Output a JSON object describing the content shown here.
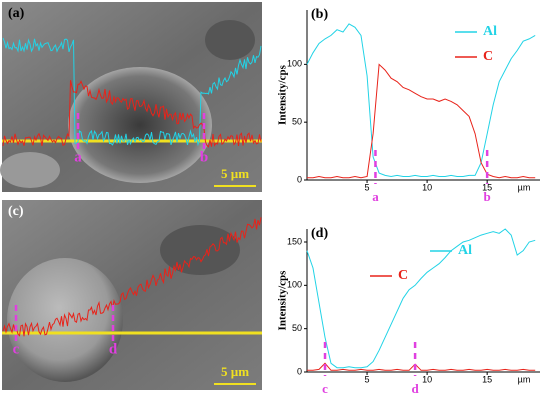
{
  "images": [
    {
      "label": "(a)",
      "scale_bar": "5 µm",
      "markers": [
        "a",
        "b"
      ]
    },
    {
      "label": "(c)",
      "scale_bar": "5 µm",
      "markers": [
        "c",
        "d"
      ]
    }
  ],
  "chart_data": [
    {
      "type": "line",
      "title": "(b)",
      "y_label": "Intensity/cps",
      "x_label": "µm",
      "x": [
        0,
        0.5,
        1,
        1.5,
        2,
        2.5,
        3,
        3.5,
        4,
        4.5,
        5,
        5.5,
        6,
        6.5,
        7,
        7.5,
        8,
        8.5,
        9,
        9.5,
        10,
        10.5,
        11,
        11.5,
        12,
        12.5,
        13,
        13.5,
        14,
        14.5,
        15,
        15.5,
        16,
        16.5,
        17,
        17.5,
        18,
        18.5,
        19
      ],
      "series": [
        {
          "name": "Al",
          "color": "#22d3e6",
          "values": [
            100,
            110,
            118,
            122,
            125,
            130,
            128,
            135,
            132,
            125,
            90,
            20,
            6,
            4,
            3,
            4,
            3,
            3,
            4,
            3,
            3,
            4,
            3,
            3,
            4,
            3,
            3,
            4,
            4,
            15,
            40,
            65,
            85,
            95,
            105,
            112,
            120,
            122,
            125
          ]
        },
        {
          "name": "C",
          "color": "#e8231a",
          "values": [
            2,
            2,
            3,
            2,
            2,
            3,
            2,
            2,
            3,
            2,
            3,
            40,
            100,
            95,
            88,
            85,
            80,
            78,
            75,
            72,
            70,
            70,
            68,
            70,
            68,
            65,
            60,
            55,
            40,
            15,
            5,
            3,
            2,
            3,
            2,
            2,
            3,
            2,
            2
          ]
        }
      ],
      "annotations": [
        {
          "label": "a",
          "x": 5.7
        },
        {
          "label": "b",
          "x": 15
        }
      ],
      "xlim": [
        0,
        19.4
      ],
      "ylim": [
        0,
        147
      ],
      "xticks": [
        5,
        10,
        15
      ],
      "yticks": [
        0,
        50,
        100
      ],
      "legend": "upper right"
    },
    {
      "type": "line",
      "title": "(d)",
      "y_label": "Intensity/cps",
      "x_label": "µm",
      "x": [
        0,
        0.5,
        1,
        1.5,
        2,
        2.5,
        3,
        3.5,
        4,
        4.5,
        5,
        5.5,
        6,
        6.5,
        7,
        7.5,
        8,
        8.5,
        9,
        9.5,
        10,
        10.5,
        11,
        11.5,
        12,
        12.5,
        13,
        13.5,
        14,
        14.5,
        15,
        15.5,
        16,
        16.5,
        17,
        17.5,
        18,
        18.5,
        19
      ],
      "series": [
        {
          "name": "Al",
          "color": "#22d3e6",
          "values": [
            140,
            120,
            80,
            40,
            10,
            5,
            5,
            6,
            5,
            5,
            6,
            12,
            25,
            40,
            55,
            70,
            85,
            95,
            100,
            108,
            115,
            120,
            125,
            132,
            140,
            145,
            150,
            152,
            155,
            158,
            160,
            162,
            160,
            165,
            158,
            135,
            140,
            150,
            152
          ]
        },
        {
          "name": "C",
          "color": "#e8231a",
          "values": [
            2,
            2,
            3,
            10,
            2,
            2,
            3,
            2,
            2,
            3,
            2,
            2,
            3,
            2,
            2,
            3,
            2,
            2,
            9,
            2,
            2,
            3,
            2,
            2,
            3,
            2,
            2,
            3,
            2,
            2,
            3,
            2,
            2,
            3,
            2,
            2,
            3,
            2,
            2
          ]
        }
      ],
      "annotations": [
        {
          "label": "c",
          "x": 1.5
        },
        {
          "label": "d",
          "x": 9
        }
      ],
      "xlim": [
        0,
        19.4
      ],
      "ylim": [
        0,
        165
      ],
      "xticks": [
        5,
        10,
        15
      ],
      "yticks": [
        0,
        50,
        100,
        150
      ],
      "legend": "upper right"
    }
  ]
}
